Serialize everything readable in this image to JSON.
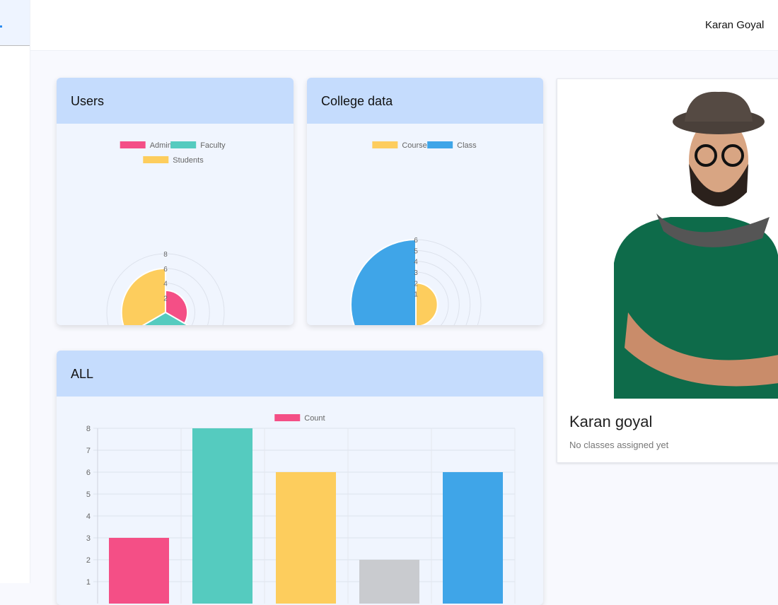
{
  "header": {
    "user_name": "Karan Goyal"
  },
  "cards": {
    "users": {
      "title": "Users"
    },
    "college": {
      "title": "College data"
    },
    "all": {
      "title": "ALL"
    }
  },
  "profile": {
    "name": "Karan goyal",
    "subtitle": "No classes assigned yet"
  },
  "chart_data": [
    {
      "type": "polarArea",
      "categories": [
        "Admin",
        "Faculty",
        "Students"
      ],
      "values": [
        3,
        8,
        6
      ],
      "colors": [
        "#f44f86",
        "#55cbbf",
        "#fdcd5d"
      ],
      "rlim": [
        0,
        8
      ],
      "ticks": [
        2,
        4,
        6,
        8
      ],
      "legend": "top"
    },
    {
      "type": "polarArea",
      "categories": [
        "Course",
        "Class"
      ],
      "values": [
        2,
        6
      ],
      "colors": [
        "#fdcd5d",
        "#3fa5e8"
      ],
      "rlim": [
        0,
        6
      ],
      "ticks": [
        1,
        2,
        3,
        4,
        5,
        6
      ],
      "legend": "top"
    },
    {
      "type": "bar",
      "series": [
        {
          "name": "Count",
          "values": [
            3,
            8,
            6,
            2,
            6
          ]
        }
      ],
      "colors": [
        "#f44f86",
        "#55cbbf",
        "#fdcd5d",
        "#c9cbcf",
        "#3fa5e8"
      ],
      "ylim": [
        0,
        8
      ],
      "yticks": [
        1,
        2,
        3,
        4,
        5,
        6,
        7,
        8
      ],
      "grid": true,
      "legend": "top"
    }
  ]
}
